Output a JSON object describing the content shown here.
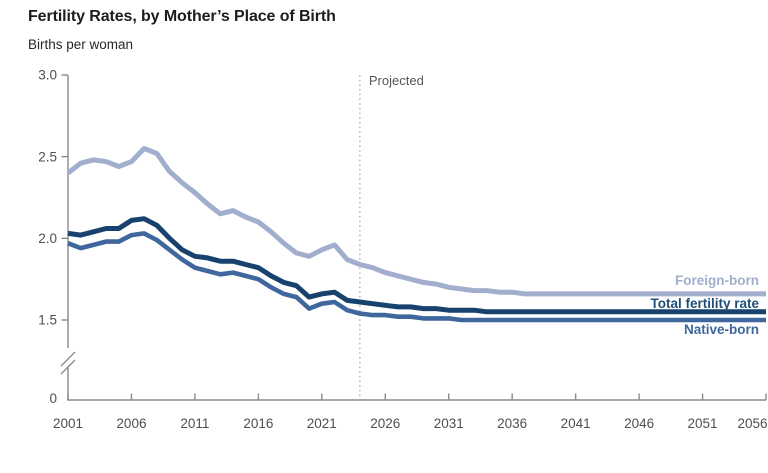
{
  "chart_data": {
    "type": "line",
    "title": "Fertility Rates, by Mother’s Place of Birth",
    "ylabel": "Births per woman",
    "xlabel": "",
    "grid": false,
    "legend_position": "right-inline",
    "y_axis": {
      "broken_axis": true,
      "break_between": [
        0,
        1.5
      ],
      "ticks": [
        {
          "label": "3.0",
          "value": 3.0
        },
        {
          "label": "2.5",
          "value": 2.5
        },
        {
          "label": "2.0",
          "value": 2.0
        },
        {
          "label": "1.5",
          "value": 1.5
        },
        {
          "label": "0",
          "value": 0
        }
      ]
    },
    "x_axis": {
      "tick_years": [
        2001,
        2006,
        2011,
        2016,
        2021,
        2026,
        2031,
        2036,
        2041,
        2046,
        2051,
        2056
      ]
    },
    "projection": {
      "label": "Projected",
      "start_year": 2024,
      "line_style": "dotted-vertical",
      "line_color": "#9e9e9e"
    },
    "x_years": [
      2001,
      2002,
      2003,
      2004,
      2005,
      2006,
      2007,
      2008,
      2009,
      2010,
      2011,
      2012,
      2013,
      2014,
      2015,
      2016,
      2017,
      2018,
      2019,
      2020,
      2021,
      2022,
      2023,
      2024,
      2025,
      2026,
      2027,
      2028,
      2029,
      2030,
      2031,
      2032,
      2033,
      2034,
      2035,
      2036,
      2037,
      2038,
      2039,
      2040,
      2041,
      2042,
      2043,
      2044,
      2045,
      2046,
      2047,
      2048,
      2049,
      2050,
      2051,
      2052,
      2053,
      2054,
      2055,
      2056
    ],
    "series": [
      {
        "name": "foreign-born",
        "label": "Foreign-born",
        "color": "#a2aecd",
        "label_color": "#a2aecd",
        "values": [
          2.4,
          2.46,
          2.48,
          2.47,
          2.44,
          2.47,
          2.55,
          2.52,
          2.41,
          2.34,
          2.28,
          2.21,
          2.15,
          2.17,
          2.13,
          2.1,
          2.04,
          1.97,
          1.91,
          1.89,
          1.93,
          1.96,
          1.87,
          1.84,
          1.82,
          1.79,
          1.77,
          1.75,
          1.73,
          1.72,
          1.7,
          1.69,
          1.68,
          1.68,
          1.67,
          1.67,
          1.66,
          1.66,
          1.66,
          1.66,
          1.66,
          1.66,
          1.66,
          1.66,
          1.66,
          1.66,
          1.66,
          1.66,
          1.66,
          1.66,
          1.66,
          1.66,
          1.66,
          1.66,
          1.66,
          1.66
        ]
      },
      {
        "name": "native-born",
        "label": "Native-born",
        "color": "#40679d",
        "label_color": "#40679d",
        "values": [
          1.97,
          1.94,
          1.96,
          1.98,
          1.98,
          2.02,
          2.03,
          1.99,
          1.93,
          1.87,
          1.82,
          1.8,
          1.78,
          1.79,
          1.77,
          1.75,
          1.7,
          1.66,
          1.64,
          1.57,
          1.6,
          1.61,
          1.56,
          1.54,
          1.53,
          1.53,
          1.52,
          1.52,
          1.51,
          1.51,
          1.51,
          1.5,
          1.5,
          1.5,
          1.5,
          1.5,
          1.5,
          1.5,
          1.5,
          1.5,
          1.5,
          1.5,
          1.5,
          1.5,
          1.5,
          1.5,
          1.5,
          1.5,
          1.5,
          1.5,
          1.5,
          1.5,
          1.5,
          1.5,
          1.5,
          1.5
        ]
      },
      {
        "name": "total-fertility-rate",
        "label": "Total fertility rate",
        "color": "#17426e",
        "label_color": "#1f4e79",
        "values": [
          2.03,
          2.02,
          2.04,
          2.06,
          2.06,
          2.11,
          2.12,
          2.08,
          2.0,
          1.93,
          1.89,
          1.88,
          1.86,
          1.86,
          1.84,
          1.82,
          1.77,
          1.73,
          1.71,
          1.64,
          1.66,
          1.67,
          1.62,
          1.61,
          1.6,
          1.59,
          1.58,
          1.58,
          1.57,
          1.57,
          1.56,
          1.56,
          1.56,
          1.55,
          1.55,
          1.55,
          1.55,
          1.55,
          1.55,
          1.55,
          1.55,
          1.55,
          1.55,
          1.55,
          1.55,
          1.55,
          1.55,
          1.55,
          1.55,
          1.55,
          1.55,
          1.55,
          1.55,
          1.55,
          1.55,
          1.55
        ]
      }
    ],
    "axis_color": "#8a8a8c"
  }
}
